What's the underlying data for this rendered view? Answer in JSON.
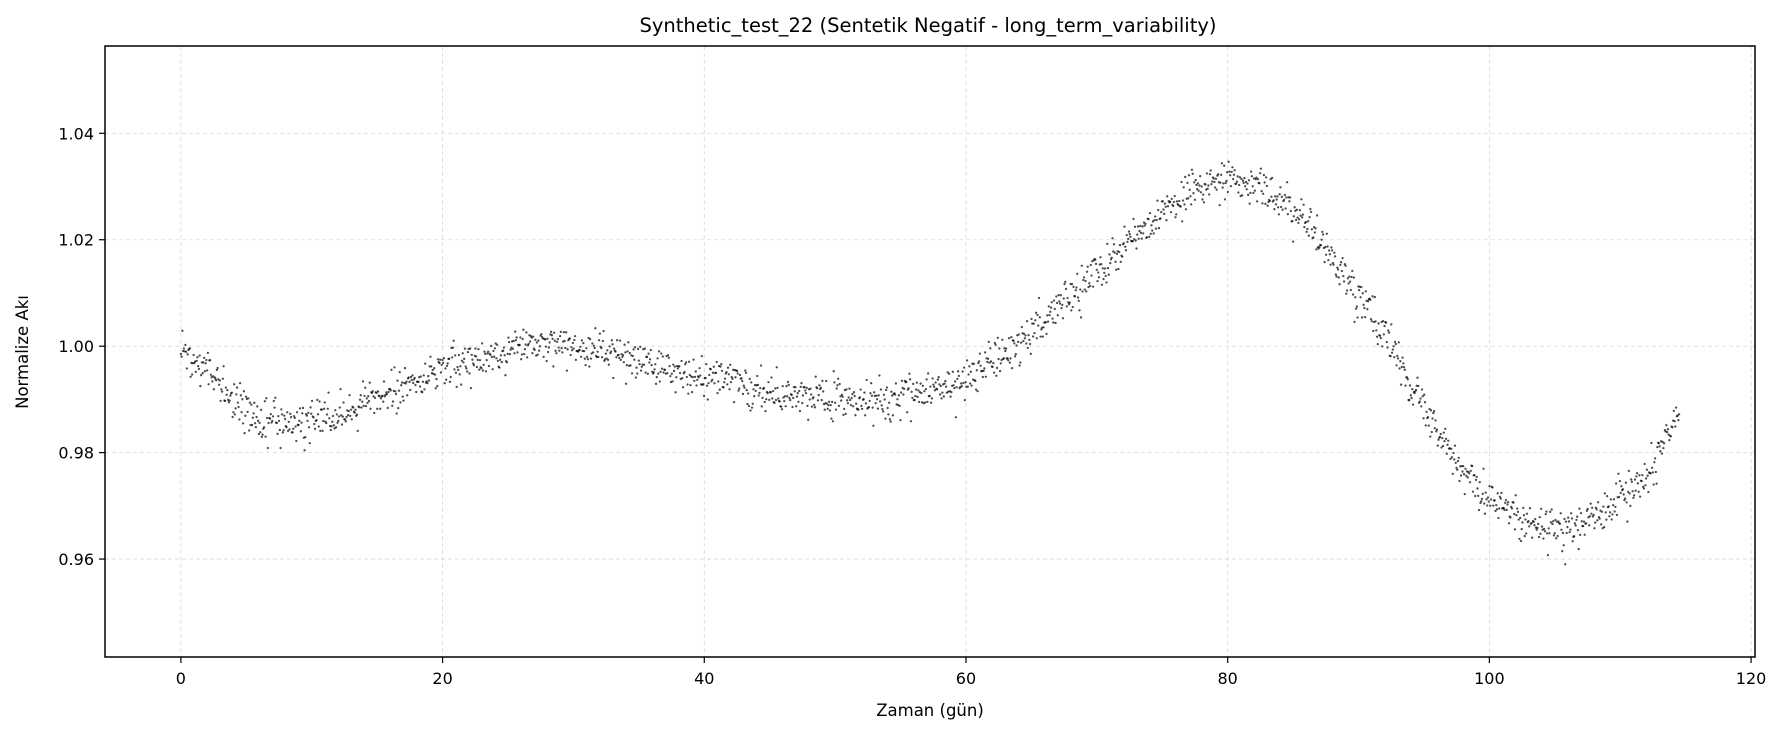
{
  "chart_data": {
    "type": "scatter",
    "title": "Synthetic_test_22 (Sentetik Negatif - long_term_variability)",
    "xlabel": "Zaman (gün)",
    "ylabel": "Normalize Akı",
    "xlim": [
      -5.8,
      120.3
    ],
    "ylim": [
      0.9416,
      1.0564
    ],
    "x_ticks": [
      0,
      20,
      40,
      60,
      80,
      100,
      120
    ],
    "x_tick_labels": [
      "0",
      "20",
      "40",
      "60",
      "80",
      "100",
      "120"
    ],
    "y_ticks": [
      0.96,
      0.98,
      1.0,
      1.02,
      1.04
    ],
    "y_tick_labels": [
      "0.96",
      "0.98",
      "1.00",
      "1.02",
      "1.04"
    ],
    "grid": true,
    "marker_color": "#000000",
    "marker_alpha": 0.7,
    "series": [
      {
        "x_range": [
          0,
          114.5
        ],
        "n_points": 2000,
        "noise_sd": 0.0018,
        "trend_points": [
          [
            0,
            0.999
          ],
          [
            2,
            0.995
          ],
          [
            4,
            0.99
          ],
          [
            6,
            0.9865
          ],
          [
            8,
            0.9855
          ],
          [
            10,
            0.9855
          ],
          [
            12,
            0.9875
          ],
          [
            15,
            0.9905
          ],
          [
            18,
            0.9935
          ],
          [
            21,
            0.9965
          ],
          [
            24,
            0.9985
          ],
          [
            27,
            1.0
          ],
          [
            30,
            0.9995
          ],
          [
            33,
            0.9985
          ],
          [
            36,
            0.9965
          ],
          [
            39,
            0.995
          ],
          [
            42,
            0.9935
          ],
          [
            45,
            0.9915
          ],
          [
            48,
            0.9905
          ],
          [
            51,
            0.99
          ],
          [
            54,
            0.99
          ],
          [
            57,
            0.9915
          ],
          [
            60,
            0.9935
          ],
          [
            62,
            0.997
          ],
          [
            64,
            1.0005
          ],
          [
            66,
            1.005
          ],
          [
            68,
            1.0095
          ],
          [
            70,
            1.014
          ],
          [
            72,
            1.0185
          ],
          [
            74,
            1.023
          ],
          [
            76,
            1.027
          ],
          [
            78,
            1.03
          ],
          [
            80,
            1.031
          ],
          [
            82,
            1.0305
          ],
          [
            84,
            1.028
          ],
          [
            86,
            1.0235
          ],
          [
            88,
            1.0165
          ],
          [
            90,
            1.01
          ],
          [
            92,
            1.002
          ],
          [
            94,
            0.993
          ],
          [
            96,
            0.984
          ],
          [
            98,
            0.9765
          ],
          [
            100,
            0.971
          ],
          [
            102,
            0.9675
          ],
          [
            104,
            0.966
          ],
          [
            106,
            0.9655
          ],
          [
            108,
            0.9675
          ],
          [
            110,
            0.9715
          ],
          [
            112,
            0.9765
          ],
          [
            114.5,
            0.9865
          ]
        ]
      }
    ]
  }
}
